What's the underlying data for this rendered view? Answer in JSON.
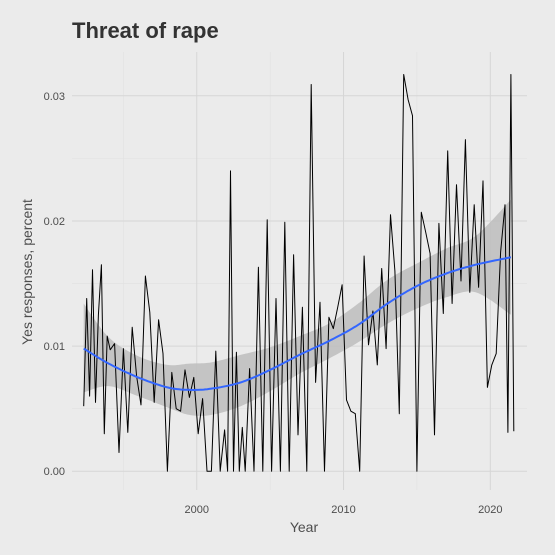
{
  "chart_data": {
    "type": "line",
    "title": "Threat of rape",
    "xlabel": "Year",
    "ylabel": "Yes responses, percent",
    "xlim": [
      1991.5,
      2022.5
    ],
    "ylim": [
      -0.0015,
      0.0335
    ],
    "x_ticks": [
      2000,
      2010,
      2020
    ],
    "x_tick_labels": [
      "2000",
      "2010",
      "2020"
    ],
    "y_ticks": [
      0.0,
      0.01,
      0.02,
      0.03
    ],
    "y_tick_labels": [
      "0.00",
      "0.01",
      "0.02",
      "0.03"
    ],
    "grid": true,
    "series": [
      {
        "kind": "raw",
        "color": "#000000",
        "x": [
          1992.3,
          1992.5,
          1992.7,
          1992.9,
          1993.1,
          1993.3,
          1993.5,
          1993.7,
          1993.9,
          1994.1,
          1994.4,
          1994.7,
          1995.0,
          1995.3,
          1995.6,
          1995.9,
          1996.2,
          1996.5,
          1996.8,
          1997.1,
          1997.4,
          1997.7,
          1998.0,
          1998.3,
          1998.6,
          1998.9,
          1999.2,
          1999.5,
          1999.8,
          2000.1,
          2000.4,
          2000.7,
          2001.0,
          2001.3,
          2001.6,
          2001.9,
          2002.1,
          2002.3,
          2002.5,
          2002.7,
          2002.9,
          2003.1,
          2003.3,
          2003.6,
          2003.9,
          2004.2,
          2004.5,
          2004.8,
          2005.1,
          2005.4,
          2005.7,
          2006.0,
          2006.3,
          2006.6,
          2006.9,
          2007.2,
          2007.5,
          2007.8,
          2008.1,
          2008.4,
          2008.7,
          2009.0,
          2009.3,
          2009.6,
          2009.9,
          2010.2,
          2010.5,
          2010.8,
          2011.1,
          2011.4,
          2011.7,
          2012.0,
          2012.3,
          2012.6,
          2012.9,
          2013.2,
          2013.5,
          2013.8,
          2014.1,
          2014.4,
          2014.7,
          2015.0,
          2015.3,
          2015.6,
          2015.9,
          2016.2,
          2016.5,
          2016.8,
          2017.1,
          2017.4,
          2017.7,
          2018.0,
          2018.3,
          2018.6,
          2018.9,
          2019.2,
          2019.5,
          2019.8,
          2020.1,
          2020.4,
          2020.7,
          2021.0,
          2021.2,
          2021.4,
          2021.6
        ],
        "y": [
          0.0052,
          0.0138,
          0.006,
          0.0161,
          0.0055,
          0.0125,
          0.0165,
          0.003,
          0.0108,
          0.0097,
          0.0102,
          0.0015,
          0.0098,
          0.0031,
          0.0115,
          0.0076,
          0.0053,
          0.0156,
          0.0127,
          0.0055,
          0.0121,
          0.0094,
          0.0,
          0.0079,
          0.005,
          0.0048,
          0.0081,
          0.0059,
          0.0075,
          0.003,
          0.0058,
          0.0,
          0.0,
          0.0096,
          0.0,
          0.0033,
          0.0,
          0.024,
          0.0,
          0.0095,
          0.0,
          0.0035,
          0.0,
          0.0082,
          0.0,
          0.0163,
          0.0,
          0.0201,
          0.0,
          0.0138,
          0.0,
          0.0199,
          0.0,
          0.0173,
          0.0029,
          0.0131,
          0.0,
          0.0309,
          0.0071,
          0.0135,
          0.0,
          0.0123,
          0.0114,
          0.0131,
          0.0149,
          0.0057,
          0.0048,
          0.0046,
          0.0,
          0.0172,
          0.0101,
          0.0128,
          0.0085,
          0.0162,
          0.0098,
          0.0205,
          0.016,
          0.0046,
          0.0317,
          0.0297,
          0.0284,
          0.0,
          0.0207,
          0.0191,
          0.0174,
          0.0029,
          0.0198,
          0.0126,
          0.0256,
          0.0134,
          0.0229,
          0.0152,
          0.0265,
          0.0143,
          0.0213,
          0.0147,
          0.0232,
          0.0067,
          0.0085,
          0.0094,
          0.0175,
          0.0213,
          0.0031,
          0.0317,
          0.0032
        ]
      },
      {
        "kind": "smooth",
        "color": "#3366ff",
        "x": [
          1992.3,
          1994,
          1996,
          1998,
          1999.5,
          2001,
          2003,
          2005,
          2007,
          2009,
          2011,
          2013,
          2015,
          2017,
          2019,
          2021.4
        ],
        "y": [
          0.0098,
          0.0086,
          0.0075,
          0.0067,
          0.0065,
          0.0066,
          0.0071,
          0.0081,
          0.0093,
          0.0104,
          0.0117,
          0.0134,
          0.0148,
          0.0158,
          0.0165,
          0.0171
        ],
        "ci_lower": [
          0.0063,
          0.0068,
          0.006,
          0.0051,
          0.0045,
          0.0045,
          0.0052,
          0.0064,
          0.0078,
          0.009,
          0.0103,
          0.0118,
          0.013,
          0.0139,
          0.0143,
          0.0125
        ],
        "ci_upper": [
          0.0134,
          0.0107,
          0.0092,
          0.0085,
          0.0086,
          0.0087,
          0.0093,
          0.0099,
          0.0108,
          0.0118,
          0.0134,
          0.0153,
          0.0166,
          0.0178,
          0.0188,
          0.0217
        ],
        "ci_color": "#bdbdbd"
      }
    ]
  }
}
